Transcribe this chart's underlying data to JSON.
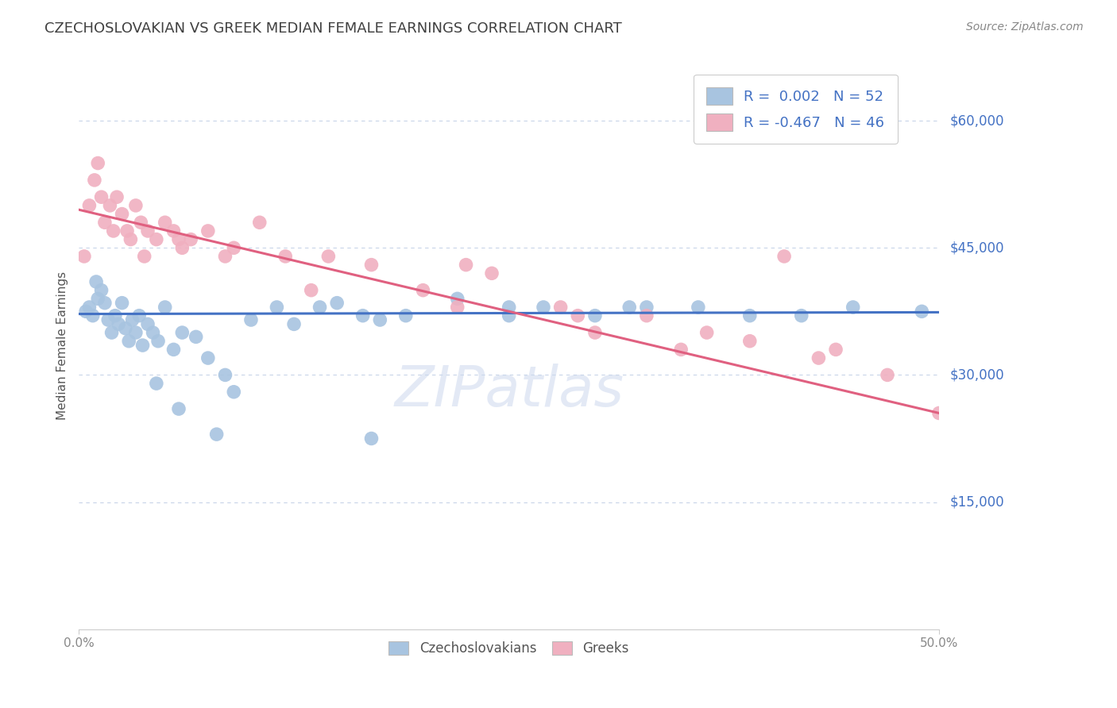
{
  "title": "CZECHOSLOVAKIAN VS GREEK MEDIAN FEMALE EARNINGS CORRELATION CHART",
  "source": "Source: ZipAtlas.com",
  "ylabel": "Median Female Earnings",
  "yticks": [
    0,
    15000,
    30000,
    45000,
    60000
  ],
  "ytick_labels": [
    "",
    "$15,000",
    "$30,000",
    "$45,000",
    "$60,000"
  ],
  "xlim": [
    0.0,
    50.0
  ],
  "ylim": [
    0,
    67000
  ],
  "legend_blue_r": "0.002",
  "legend_blue_n": "52",
  "legend_pink_r": "-0.467",
  "legend_pink_n": "46",
  "legend_label_blue": "Czechoslovakians",
  "legend_label_pink": "Greeks",
  "blue_color": "#a8c4e0",
  "pink_color": "#f0b0c0",
  "blue_line_color": "#4472c4",
  "pink_line_color": "#e06080",
  "axis_label_color": "#4472c4",
  "title_color": "#404040",
  "background_color": "#ffffff",
  "grid_color": "#c8d4e8",
  "blue_scatter_x": [
    0.4,
    0.6,
    0.8,
    1.0,
    1.1,
    1.3,
    1.5,
    1.7,
    1.9,
    2.1,
    2.3,
    2.5,
    2.7,
    2.9,
    3.1,
    3.3,
    3.5,
    3.7,
    4.0,
    4.3,
    4.6,
    5.0,
    5.5,
    6.0,
    6.8,
    7.5,
    8.5,
    9.0,
    10.0,
    11.5,
    12.5,
    14.0,
    15.0,
    16.5,
    17.5,
    19.0,
    22.0,
    25.0,
    27.0,
    30.0,
    33.0,
    36.0,
    39.0,
    42.0,
    45.0,
    49.0,
    4.5,
    5.8,
    8.0,
    17.0,
    25.0,
    32.0
  ],
  "blue_scatter_y": [
    37500,
    38000,
    37000,
    41000,
    39000,
    40000,
    38500,
    36500,
    35000,
    37000,
    36000,
    38500,
    35500,
    34000,
    36500,
    35000,
    37000,
    33500,
    36000,
    35000,
    34000,
    38000,
    33000,
    35000,
    34500,
    32000,
    30000,
    28000,
    36500,
    38000,
    36000,
    38000,
    38500,
    37000,
    36500,
    37000,
    39000,
    37000,
    38000,
    37000,
    38000,
    38000,
    37000,
    37000,
    38000,
    37500,
    29000,
    26000,
    23000,
    22500,
    38000,
    38000
  ],
  "pink_scatter_x": [
    0.3,
    0.6,
    0.9,
    1.1,
    1.3,
    1.5,
    1.8,
    2.0,
    2.2,
    2.5,
    2.8,
    3.0,
    3.3,
    3.6,
    4.0,
    4.5,
    5.0,
    5.5,
    6.0,
    6.5,
    7.5,
    9.0,
    10.5,
    12.0,
    14.5,
    17.0,
    20.0,
    22.5,
    24.0,
    28.0,
    30.0,
    33.0,
    36.5,
    39.0,
    43.0,
    47.0,
    3.8,
    5.8,
    8.5,
    13.5,
    22.0,
    29.0,
    35.0,
    44.0,
    41.0,
    50.0
  ],
  "pink_scatter_y": [
    44000,
    50000,
    53000,
    55000,
    51000,
    48000,
    50000,
    47000,
    51000,
    49000,
    47000,
    46000,
    50000,
    48000,
    47000,
    46000,
    48000,
    47000,
    45000,
    46000,
    47000,
    45000,
    48000,
    44000,
    44000,
    43000,
    40000,
    43000,
    42000,
    38000,
    35000,
    37000,
    35000,
    34000,
    32000,
    30000,
    44000,
    46000,
    44000,
    40000,
    38000,
    37000,
    33000,
    33000,
    44000,
    25500
  ],
  "blue_trend_x": [
    0.0,
    50.0
  ],
  "blue_trend_y": [
    37200,
    37400
  ],
  "pink_trend_x": [
    0.0,
    50.0
  ],
  "pink_trend_y": [
    49500,
    25500
  ]
}
